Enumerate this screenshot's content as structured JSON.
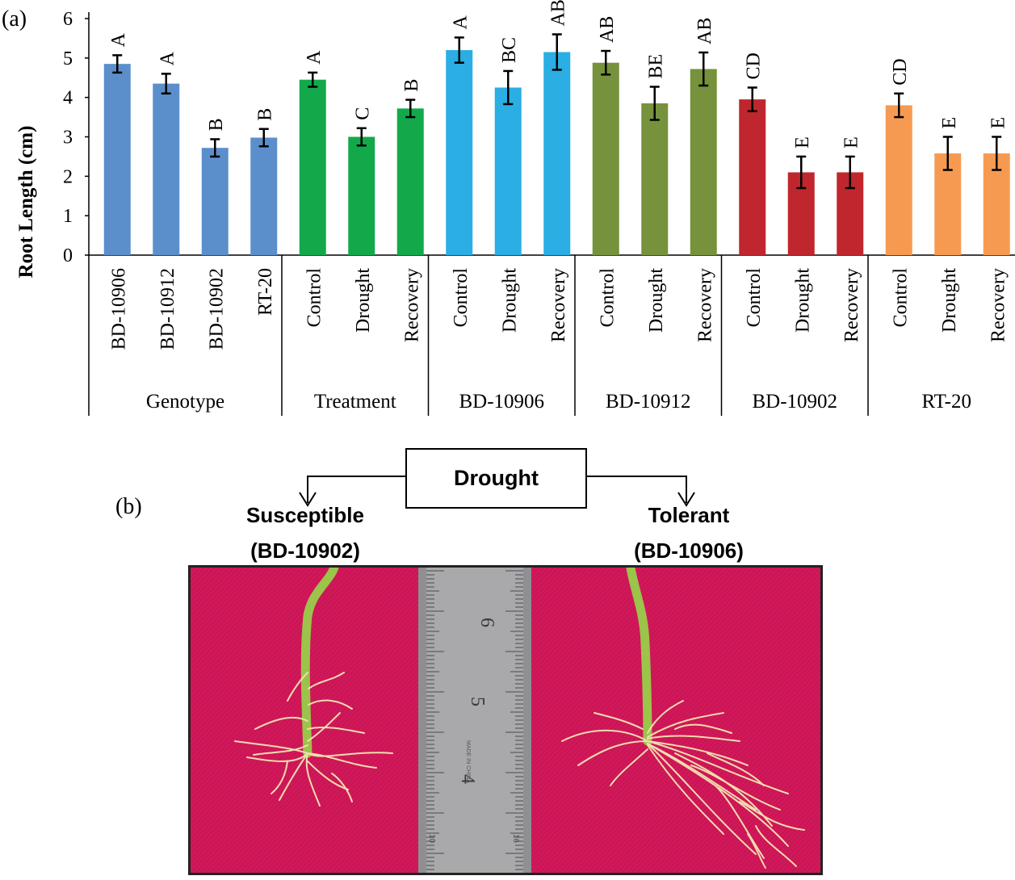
{
  "panel_a_label": "(a)",
  "panel_b_label": "(b)",
  "chart_data": {
    "type": "bar",
    "ylabel": "Root Length  (cm)",
    "ylim": [
      0,
      6
    ],
    "yticks": [
      0,
      1,
      2,
      3,
      4,
      5,
      6
    ],
    "grid": false,
    "groups": [
      {
        "label": "Genotype",
        "color": "#5b8fcb",
        "bars": [
          {
            "category": "BD-10906",
            "value": 4.85,
            "error": 0.22,
            "letter": "A"
          },
          {
            "category": "BD-10912",
            "value": 4.35,
            "error": 0.25,
            "letter": "A"
          },
          {
            "category": "BD-10902",
            "value": 2.72,
            "error": 0.22,
            "letter": "B"
          },
          {
            "category": "RT-20",
            "value": 2.98,
            "error": 0.22,
            "letter": "B"
          }
        ]
      },
      {
        "label": "Treatment",
        "color": "#13a94a",
        "bars": [
          {
            "category": "Control",
            "value": 4.45,
            "error": 0.18,
            "letter": "A"
          },
          {
            "category": "Drought",
            "value": 3.0,
            "error": 0.22,
            "letter": "C"
          },
          {
            "category": "Recovery",
            "value": 3.72,
            "error": 0.22,
            "letter": "B"
          }
        ]
      },
      {
        "label": "BD-10906",
        "color": "#2aaee3",
        "bars": [
          {
            "category": "Control",
            "value": 5.2,
            "error": 0.32,
            "letter": "A"
          },
          {
            "category": "Drought",
            "value": 4.25,
            "error": 0.42,
            "letter": "BC"
          },
          {
            "category": "Recovery",
            "value": 5.15,
            "error": 0.45,
            "letter": "AB"
          }
        ]
      },
      {
        "label": "BD-10912",
        "color": "#76923c",
        "bars": [
          {
            "category": "Control",
            "value": 4.88,
            "error": 0.3,
            "letter": "AB"
          },
          {
            "category": "Drought",
            "value": 3.85,
            "error": 0.42,
            "letter": "BE"
          },
          {
            "category": "Recovery",
            "value": 4.72,
            "error": 0.42,
            "letter": "AB"
          }
        ]
      },
      {
        "label": "BD-10902",
        "color": "#c0262d",
        "bars": [
          {
            "category": "Control",
            "value": 3.95,
            "error": 0.3,
            "letter": "CD"
          },
          {
            "category": "Drought",
            "value": 2.1,
            "error": 0.4,
            "letter": "E"
          },
          {
            "category": "Recovery",
            "value": 2.1,
            "error": 0.4,
            "letter": "E"
          }
        ]
      },
      {
        "label": "RT-20",
        "color": "#f79a51",
        "bars": [
          {
            "category": "Control",
            "value": 3.8,
            "error": 0.3,
            "letter": "CD"
          },
          {
            "category": "Drought",
            "value": 2.58,
            "error": 0.42,
            "letter": "E"
          },
          {
            "category": "Recovery",
            "value": 2.58,
            "error": 0.42,
            "letter": "E"
          }
        ]
      }
    ]
  },
  "panel_b": {
    "center_label": "Drought",
    "left_label_line1": "Susceptible",
    "left_label_line2": "(BD-10902)",
    "right_label_line1": "Tolerant",
    "right_label_line2": "(BD-10906)",
    "photo_colors": {
      "cloth": "#d2185a",
      "ruler": "#a9a9ab",
      "stem": "#9cc34a",
      "root": "#f1dcae"
    },
    "ruler_numbers": [
      "6",
      "5",
      "4"
    ],
    "ruler_small_text": [
      "MADE IN CHINA",
      "10",
      "16"
    ]
  }
}
